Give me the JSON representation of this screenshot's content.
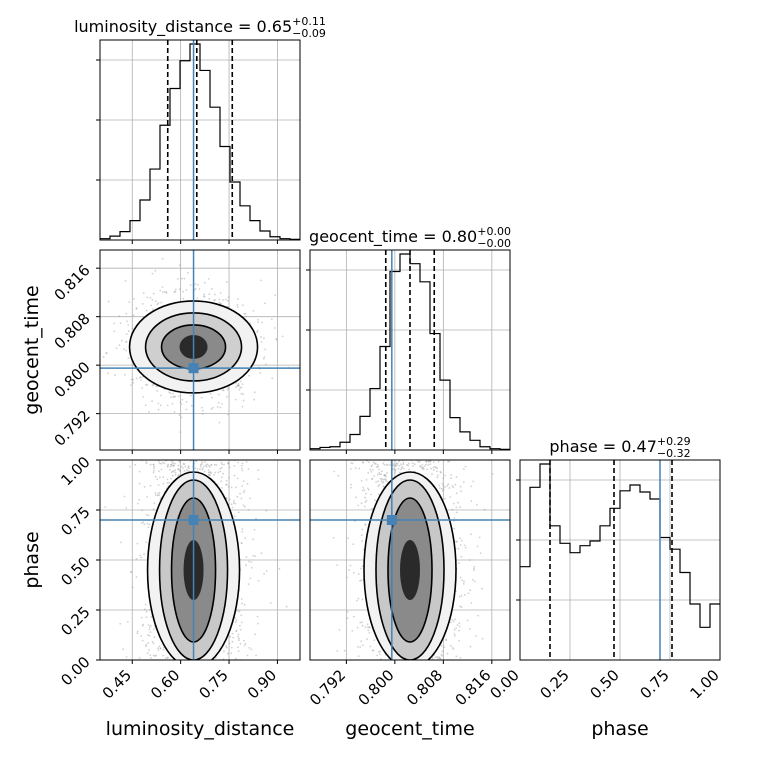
{
  "chart_data": {
    "type": "corner",
    "parameters": [
      "luminosity_distance",
      "geocent_time",
      "phase"
    ],
    "axis_labels": [
      "luminosity_distance",
      "geocent_time",
      "phase"
    ],
    "truth_color": "#4682b4",
    "ranges": [
      [
        0.35,
        0.97
      ],
      [
        0.786,
        0.819
      ],
      [
        0.0,
        1.0
      ]
    ],
    "ticks": [
      [
        "0.45",
        "0.60",
        "0.75",
        "0.90"
      ],
      [
        "0.792",
        "0.800",
        "0.808",
        "0.816"
      ],
      [
        "0.00",
        "0.25",
        "0.50",
        "0.75",
        "1.00"
      ]
    ],
    "tick_values": [
      [
        0.45,
        0.6,
        0.75,
        0.9
      ],
      [
        0.792,
        0.8,
        0.808,
        0.816
      ],
      [
        0.0,
        0.25,
        0.5,
        0.75,
        1.0
      ]
    ],
    "titles": [
      {
        "name": "luminosity_distance",
        "value": "0.65",
        "plus": "+0.11",
        "minus": "−0.09"
      },
      {
        "name": "geocent_time",
        "value": "0.80",
        "plus": "+0.00",
        "minus": "−0.00"
      },
      {
        "name": "phase",
        "value": "0.47",
        "plus": "+0.29",
        "minus": "−0.32"
      }
    ],
    "truths": [
      0.64,
      0.7995,
      0.7
    ],
    "quantiles": [
      [
        0.56,
        0.65,
        0.76
      ],
      [
        0.7985,
        0.8025,
        0.8065
      ],
      [
        0.15,
        0.47,
        0.76
      ]
    ],
    "histograms": [
      {
        "edges_range": [
          0.35,
          0.97
        ],
        "counts": [
          0.2,
          0.6,
          1.3,
          3.0,
          6.2,
          11.0,
          17.8,
          23.5,
          27.8,
          30.4,
          26.3,
          20.6,
          14.5,
          9.0,
          5.3,
          3.0,
          1.4,
          0.5,
          0.2,
          0.1
        ]
      },
      {
        "edges_range": [
          0.786,
          0.819
        ],
        "counts": [
          0.2,
          0.4,
          0.5,
          1.2,
          2.4,
          5.2,
          9.5,
          16.0,
          27.6,
          30.3,
          28.8,
          26.0,
          18.0,
          10.8,
          5.0,
          2.8,
          1.5,
          0.5,
          0.2,
          0.1
        ]
      },
      {
        "edges_range": [
          0.0,
          1.0
        ],
        "counts": [
          0.8,
          1.48,
          1.68,
          1.15,
          1.0,
          0.92,
          0.98,
          1.02,
          1.15,
          1.3,
          1.45,
          1.5,
          1.44,
          1.38,
          1.05,
          0.95,
          0.75,
          0.48,
          0.28,
          0.48
        ]
      }
    ],
    "density_centers": [
      [
        0.64,
        0.803
      ],
      [
        0.64,
        0.55
      ],
      [
        0.8025,
        0.52
      ]
    ],
    "grid": true
  }
}
